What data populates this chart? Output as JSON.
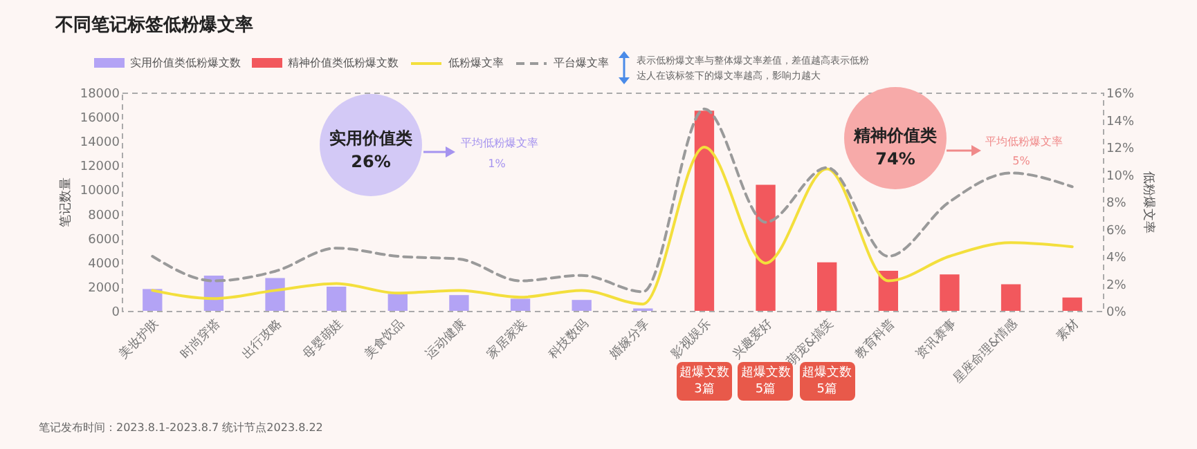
{
  "chart_data": {
    "type": "bar",
    "title": "不同笔记标签低粉爆文率",
    "categories": [
      "美妆护肤",
      "时尚穿搭",
      "出行攻略",
      "母婴萌娃",
      "美食饮品",
      "运动健康",
      "家居家装",
      "科技数码",
      "婚嫁分享",
      "影视娱乐",
      "兴趣爱好",
      "萌宠&搞笑",
      "教育科普",
      "资讯赛事",
      "星座命理&情感",
      "素材"
    ],
    "series": [
      {
        "name": "实用价值类低粉爆文数",
        "color": "#b3a3f5",
        "values": [
          1800,
          2900,
          2700,
          2000,
          1400,
          1300,
          1000,
          900,
          200,
          null,
          null,
          null,
          null,
          null,
          null,
          null
        ]
      },
      {
        "name": "精神价值类低粉爆文数",
        "color": "#f2585d",
        "values": [
          null,
          null,
          null,
          null,
          null,
          null,
          null,
          null,
          null,
          16500,
          10400,
          4000,
          3300,
          3000,
          2200,
          1100
        ]
      },
      {
        "name": "低粉爆文率",
        "type": "line",
        "axis": "y2",
        "color": "#f3df3c",
        "values": [
          1.5,
          0.9,
          1.5,
          2.0,
          1.3,
          1.5,
          1.0,
          1.5,
          0.5,
          12.0,
          3.5,
          10.4,
          2.2,
          4.0,
          5.0,
          4.7
        ]
      },
      {
        "name": "平台爆文率",
        "type": "line",
        "axis": "y2",
        "line_style": "dashed",
        "color": "#9a9a9a",
        "values": [
          4.0,
          2.2,
          2.9,
          4.6,
          4.0,
          3.8,
          2.2,
          2.6,
          1.4,
          14.8,
          6.5,
          10.5,
          4.0,
          8.0,
          10.1,
          9.1
        ]
      }
    ],
    "ylabel": "笔记数量",
    "y2label": "低粉爆文率",
    "ylim": [
      0,
      18000
    ],
    "yticks": [
      0,
      2000,
      4000,
      6000,
      8000,
      10000,
      12000,
      14000,
      16000,
      18000
    ],
    "y2lim": [
      0,
      16
    ],
    "y2ticks": [
      {
        "value": 0,
        "label": "0%"
      },
      {
        "value": 2,
        "label": "2%"
      },
      {
        "value": 4,
        "label": "4%"
      },
      {
        "value": 6,
        "label": "6%"
      },
      {
        "value": 8,
        "label": "8%"
      },
      {
        "value": 10,
        "label": "10%"
      },
      {
        "value": 12,
        "label": "12%"
      },
      {
        "value": 14,
        "label": "14%"
      },
      {
        "value": 16,
        "label": "16%"
      }
    ],
    "legend": "top",
    "annotations": [
      "表示低粉爆文率与整体爆文率差值，差值越高表示低粉达人在该标签下的爆文率越高，影响力越大",
      "实用价值类",
      "26%",
      "平均低粉爆文率",
      "1%",
      "精神价值类",
      "74%",
      "平均低粉爆文率",
      "5%",
      "笔记发布时间：2023.8.1-2023.8.7 统计节点2023.8.22",
      "超爆文数 3篇",
      "超爆文数 5篇",
      "超爆文数 5篇"
    ]
  }
}
